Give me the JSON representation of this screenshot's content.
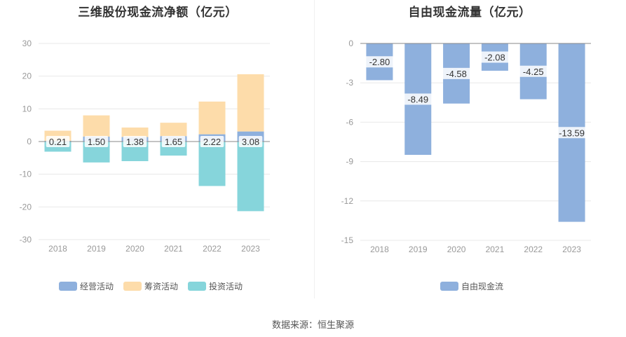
{
  "chart_data": [
    {
      "type": "bar",
      "stacked": true,
      "title": "三维股份现金流净额（亿元）",
      "categories": [
        "2018",
        "2019",
        "2020",
        "2021",
        "2022",
        "2023"
      ],
      "series": [
        {
          "name": "经营活动",
          "color": "#8eb0dd",
          "values": [
            0.21,
            1.5,
            1.38,
            1.65,
            2.22,
            3.08
          ],
          "labels": [
            "0.21",
            "1.50",
            "1.38",
            "1.65",
            "2.22",
            "3.08"
          ]
        },
        {
          "name": "筹资活动",
          "color": "#fddcaa",
          "values": [
            3.1,
            6.5,
            2.9,
            4.1,
            10.0,
            17.5
          ]
        },
        {
          "name": "投资活动",
          "color": "#86d5db",
          "values": [
            -3.1,
            -6.4,
            -6.0,
            -4.3,
            -13.6,
            -21.3
          ]
        }
      ],
      "yticks": [
        30,
        20,
        10,
        0,
        -10,
        -20,
        -30
      ],
      "ylim": [
        -30,
        30
      ],
      "legend": "bottom-center",
      "grid": true
    },
    {
      "type": "bar",
      "title": "自由现金流量（亿元）",
      "categories": [
        "2018",
        "2019",
        "2020",
        "2021",
        "2022",
        "2023"
      ],
      "series": [
        {
          "name": "自由现金流",
          "color": "#8eb0dd",
          "values": [
            -2.8,
            -8.49,
            -4.58,
            -2.08,
            -4.25,
            -13.59
          ],
          "labels": [
            "-2.80",
            "-8.49",
            "-4.58",
            "-2.08",
            "-4.25",
            "-13.59"
          ]
        }
      ],
      "yticks": [
        0,
        -3,
        -6,
        -9,
        -12,
        -15
      ],
      "ylim": [
        -15,
        0
      ],
      "legend": "bottom-center",
      "grid": true
    }
  ],
  "source": "数据来源：恒生聚源"
}
